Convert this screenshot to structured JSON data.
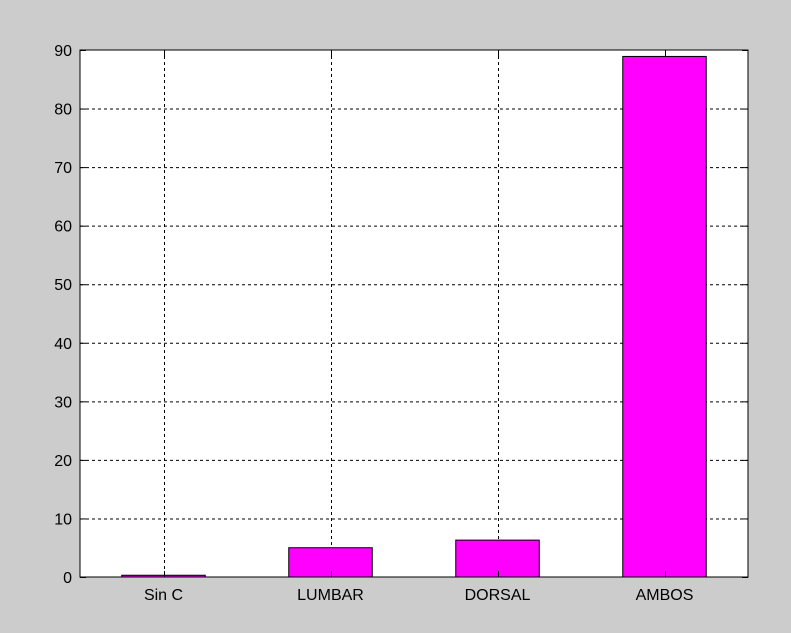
{
  "chart_data": {
    "type": "bar",
    "categories": [
      "Sin C",
      "LUMBAR",
      "DORSAL",
      "AMBOS"
    ],
    "values": [
      0.3,
      5.0,
      6.3,
      88.9
    ],
    "title": "",
    "xlabel": "",
    "ylabel": "",
    "ylim": [
      0,
      90
    ],
    "yticks": [
      0,
      10,
      20,
      30,
      40,
      50,
      60,
      70,
      80,
      90
    ],
    "grid": true,
    "grid_style": "dashed",
    "legend": "none",
    "bar_color": "#ff00ff",
    "bar_edge_color": "#000000"
  },
  "colors": {
    "figure_background": "#cccccc",
    "axes_background": "#ffffff",
    "grid": "#000000"
  }
}
